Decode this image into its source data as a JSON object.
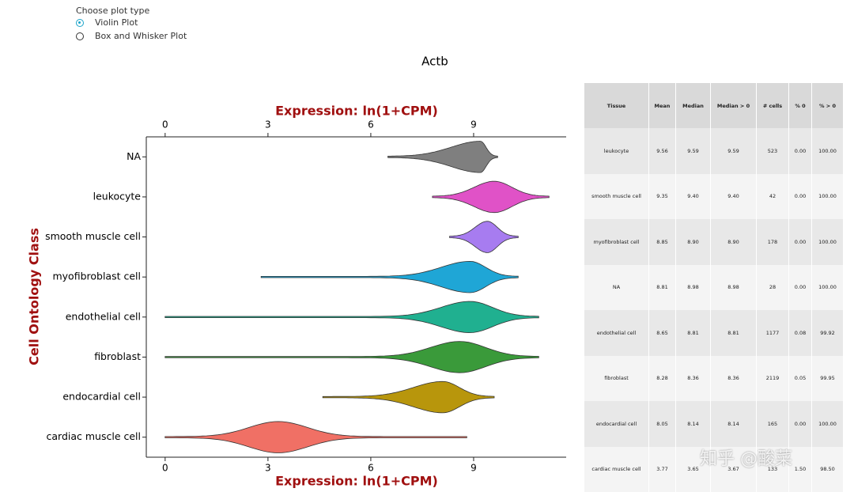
{
  "controls": {
    "label": "Choose plot type",
    "options": [
      "Violin Plot",
      "Box and Whisker Plot"
    ],
    "selected": 0
  },
  "chart_data": {
    "type": "violin",
    "title": "Actb",
    "xlabel": "Expression: ln(1+CPM)",
    "ylabel": "Cell Ontology Class",
    "categories": [
      "NA",
      "leukocyte",
      "smooth muscle cell",
      "myofibroblast cell",
      "endothelial cell",
      "fibroblast",
      "endocardial cell",
      "cardiac muscle cell"
    ],
    "violins": [
      {
        "min": 6.5,
        "mode": 9.2,
        "max": 9.7,
        "color": "#7f7f7f"
      },
      {
        "min": 7.8,
        "mode": 9.6,
        "max": 11.2,
        "color": "#e052c7"
      },
      {
        "min": 8.3,
        "mode": 9.4,
        "max": 10.3,
        "color": "#a77cf0"
      },
      {
        "min": 2.8,
        "mode": 8.9,
        "max": 10.3,
        "color": "#1fa6d6"
      },
      {
        "min": 0,
        "mode": 8.9,
        "max": 10.9,
        "color": "#20b090"
      },
      {
        "min": 0,
        "mode": 8.6,
        "max": 10.9,
        "color": "#3a9a3a"
      },
      {
        "min": 4.6,
        "mode": 8.1,
        "max": 9.6,
        "color": "#b8960c"
      },
      {
        "min": 0,
        "mode": 3.3,
        "max": 8.8,
        "color": "#f07065"
      }
    ],
    "xlim": [
      -0.55,
      11.7
    ],
    "xticks": [
      0,
      3,
      6,
      9
    ]
  },
  "table": {
    "columns": [
      "Tissue",
      "Mean",
      "Median",
      "Median > 0",
      "# cells",
      "% 0",
      "% > 0"
    ],
    "rows": [
      [
        "leukocyte",
        "9.56",
        "9.59",
        "9.59",
        "523",
        "0.00",
        "100.00"
      ],
      [
        "smooth muscle cell",
        "9.35",
        "9.40",
        "9.40",
        "42",
        "0.00",
        "100.00"
      ],
      [
        "myofibroblast cell",
        "8.85",
        "8.90",
        "8.90",
        "178",
        "0.00",
        "100.00"
      ],
      [
        "NA",
        "8.81",
        "8.98",
        "8.98",
        "28",
        "0.00",
        "100.00"
      ],
      [
        "endothelial cell",
        "8.65",
        "8.81",
        "8.81",
        "1177",
        "0.08",
        "99.92"
      ],
      [
        "fibroblast",
        "8.28",
        "8.36",
        "8.36",
        "2119",
        "0.05",
        "99.95"
      ],
      [
        "endocardial cell",
        "8.05",
        "8.14",
        "8.14",
        "165",
        "0.00",
        "100.00"
      ],
      [
        "cardiac muscle cell",
        "3.77",
        "3.65",
        "3.67",
        "133",
        "1.50",
        "98.50"
      ]
    ]
  },
  "watermark": "知乎 @酸菜"
}
